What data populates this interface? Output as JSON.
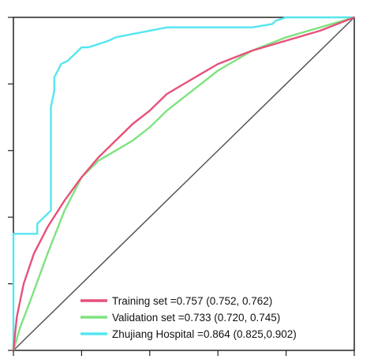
{
  "chart_data": {
    "type": "line",
    "title": "",
    "xlabel": "",
    "ylabel": "",
    "xlim": [
      0,
      1
    ],
    "ylim": [
      0,
      1
    ],
    "grid": false,
    "legend_position": "bottom-right",
    "reference_line": {
      "x": [
        0,
        1
      ],
      "y": [
        0,
        1
      ],
      "color": "#555555"
    },
    "series": [
      {
        "name": "Training set =0.757 (0.752, 0.762)",
        "color": "#e8507a",
        "x": [
          0,
          0.01,
          0.03,
          0.06,
          0.1,
          0.15,
          0.2,
          0.25,
          0.3,
          0.35,
          0.4,
          0.45,
          0.5,
          0.55,
          0.6,
          0.65,
          0.7,
          0.8,
          0.9,
          1
        ],
        "y": [
          0,
          0.1,
          0.2,
          0.29,
          0.37,
          0.45,
          0.52,
          0.58,
          0.63,
          0.68,
          0.72,
          0.77,
          0.8,
          0.83,
          0.86,
          0.88,
          0.9,
          0.93,
          0.96,
          1
        ]
      },
      {
        "name": "Validation set =0.733 (0.720, 0.745)",
        "color": "#7de37f",
        "x": [
          0,
          0.02,
          0.05,
          0.1,
          0.15,
          0.2,
          0.25,
          0.3,
          0.35,
          0.4,
          0.45,
          0.5,
          0.55,
          0.6,
          0.65,
          0.7,
          0.8,
          0.9,
          1
        ],
        "y": [
          0,
          0.07,
          0.15,
          0.29,
          0.42,
          0.52,
          0.57,
          0.6,
          0.63,
          0.67,
          0.72,
          0.76,
          0.8,
          0.84,
          0.87,
          0.9,
          0.94,
          0.97,
          1
        ]
      },
      {
        "name": "Zhujiang Hospital =0.864 (0.825,0.902)",
        "color": "#55e6f0",
        "x": [
          0,
          0,
          0.07,
          0.07,
          0.11,
          0.11,
          0.12,
          0.12,
          0.13,
          0.14,
          0.16,
          0.18,
          0.2,
          0.22,
          0.25,
          0.28,
          0.3,
          0.35,
          0.4,
          0.45,
          0.5,
          0.55,
          0.6,
          0.7,
          0.76,
          0.77,
          0.8,
          0.9,
          1
        ],
        "y": [
          0,
          0.35,
          0.35,
          0.38,
          0.42,
          0.73,
          0.78,
          0.82,
          0.84,
          0.86,
          0.87,
          0.89,
          0.91,
          0.91,
          0.92,
          0.93,
          0.94,
          0.95,
          0.96,
          0.97,
          0.97,
          0.97,
          0.97,
          0.97,
          0.98,
          0.99,
          1,
          1,
          1
        ]
      }
    ]
  }
}
